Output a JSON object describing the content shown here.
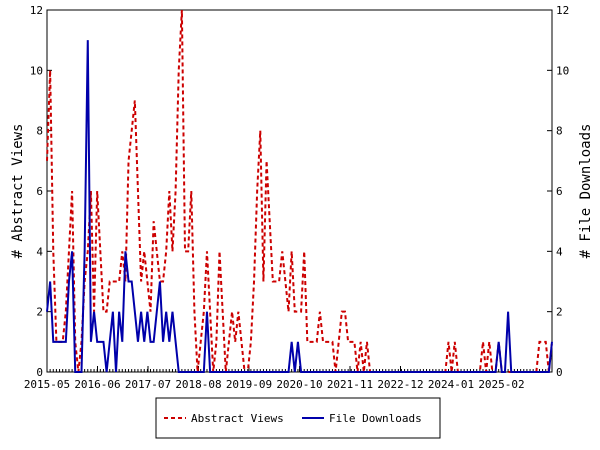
{
  "chart_data": {
    "type": "line",
    "title": "",
    "xlabel": "",
    "ylabel_left": "# Abstract Views",
    "ylabel_right": "# File Downloads",
    "y_left_range": [
      0,
      12
    ],
    "y_right_range": [
      0,
      12
    ],
    "y_left_ticks": [
      0,
      2,
      4,
      6,
      8,
      10,
      12
    ],
    "y_right_ticks": [
      0,
      2,
      4,
      6,
      8,
      10,
      12
    ],
    "x_tick_labels": [
      "2015-05",
      "2016-06",
      "2017-07",
      "2018-08",
      "2019-09",
      "2020-10",
      "2021-11",
      "2022-12",
      "2024-01",
      "2025-02"
    ],
    "grid": false,
    "legend_position": "bottom-center",
    "series": [
      {
        "name": "Abstract Views",
        "axis": "left",
        "color": "#cc0000",
        "style": "dashed",
        "values": [
          7,
          10,
          4,
          1,
          1,
          1,
          2,
          4,
          6,
          1,
          0,
          1,
          3,
          4,
          6,
          2,
          6,
          4,
          2,
          2,
          3,
          3,
          3,
          3,
          4,
          3,
          7,
          8,
          9,
          6,
          3,
          4,
          3,
          2,
          5,
          4,
          3,
          3,
          4,
          6,
          4,
          6,
          10,
          12,
          4,
          4,
          6,
          2,
          0,
          1,
          2,
          4,
          2,
          0,
          1,
          4,
          2,
          0,
          1,
          2,
          1,
          2,
          1,
          0,
          0,
          1,
          3,
          6,
          8,
          3,
          7,
          5,
          3,
          3,
          3,
          4,
          3,
          2,
          4,
          2,
          2,
          2,
          4,
          1,
          1,
          1,
          1,
          2,
          1,
          1,
          1,
          1,
          0,
          1,
          2,
          2,
          1,
          1,
          1,
          0,
          1,
          0,
          1,
          0,
          0,
          0,
          0,
          0,
          0,
          0,
          0,
          0,
          0,
          0,
          0,
          0,
          0,
          0,
          0,
          0,
          0,
          0,
          0,
          0,
          0,
          0,
          0,
          0,
          1,
          0,
          1,
          0,
          0,
          0,
          0,
          0,
          0,
          0,
          0,
          1,
          0,
          1,
          0,
          0,
          1,
          0,
          0,
          0,
          0,
          0,
          0,
          0,
          0,
          0,
          0,
          0,
          0,
          1,
          1,
          1,
          0,
          1
        ]
      },
      {
        "name": "File Downloads",
        "axis": "right",
        "color": "#0000aa",
        "style": "solid",
        "values": [
          2,
          3,
          1,
          1,
          1,
          1,
          1,
          3,
          4,
          0,
          0,
          0,
          4,
          11,
          1,
          2,
          1,
          1,
          1,
          0,
          1,
          2,
          0,
          2,
          1,
          4,
          3,
          3,
          2,
          1,
          2,
          1,
          2,
          1,
          1,
          2,
          3,
          1,
          2,
          1,
          2,
          1,
          0,
          0,
          0,
          0,
          0,
          0,
          0,
          0,
          0,
          2,
          0,
          0,
          0,
          0,
          0,
          0,
          0,
          0,
          0,
          0,
          0,
          0,
          0,
          0,
          0,
          0,
          0,
          0,
          0,
          0,
          0,
          0,
          0,
          0,
          0,
          0,
          1,
          0,
          1,
          0,
          0,
          0,
          0,
          0,
          0,
          0,
          0,
          0,
          0,
          0,
          0,
          0,
          0,
          0,
          0,
          0,
          0,
          0,
          0,
          0,
          0,
          0,
          0,
          0,
          0,
          0,
          0,
          0,
          0,
          0,
          0,
          0,
          0,
          0,
          0,
          0,
          0,
          0,
          0,
          0,
          0,
          0,
          0,
          0,
          0,
          0,
          0,
          0,
          0,
          0,
          0,
          0,
          0,
          0,
          0,
          0,
          0,
          0,
          0,
          0,
          0,
          0,
          1,
          0,
          0,
          2,
          0,
          0,
          0,
          0,
          0,
          0,
          0,
          0,
          0,
          0,
          0,
          0,
          0,
          1
        ]
      }
    ]
  }
}
